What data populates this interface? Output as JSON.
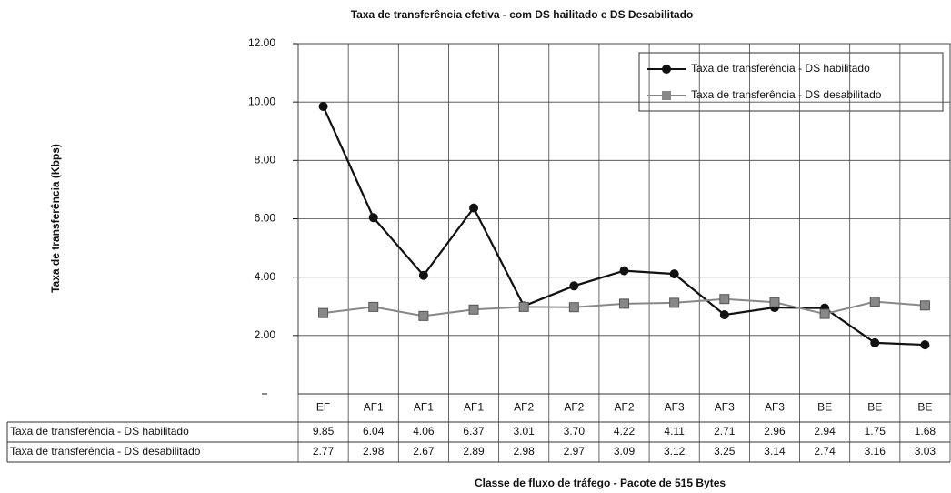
{
  "chart_data": {
    "type": "line",
    "title": "Taxa de transferência efetiva - com DS hailitado e DS Desabilitado",
    "x_label": "Classe de fluxo de tráfego - Pacote de 515 Bytes",
    "y_label": "Taxa de transferência (Kbps)",
    "categories": [
      "EF",
      "AF1",
      "AF1",
      "AF1",
      "AF2",
      "AF2",
      "AF2",
      "AF3",
      "AF3",
      "AF3",
      "BE",
      "BE",
      "BE"
    ],
    "series": [
      {
        "name": "Taxa de transferência - DS habilitado",
        "color": "#111111",
        "marker": "circle",
        "values": [
          9.85,
          6.04,
          4.06,
          6.37,
          3.01,
          3.7,
          4.22,
          4.11,
          2.71,
          2.96,
          2.94,
          1.75,
          1.68
        ],
        "value_labels": [
          "9.85",
          "6.04",
          "4.06",
          "6.37",
          "3.01",
          "3.70",
          "4.22",
          "4.11",
          "2.71",
          "2.96",
          "2.94",
          "1.75",
          "1.68"
        ]
      },
      {
        "name": "Taxa de transferência - DS desabilitado",
        "color": "#888888",
        "marker": "square",
        "values": [
          2.77,
          2.98,
          2.67,
          2.89,
          2.98,
          2.97,
          3.09,
          3.12,
          3.25,
          3.14,
          2.74,
          3.16,
          3.03
        ],
        "value_labels": [
          "2.77",
          "2.98",
          "2.67",
          "2.89",
          "2.98",
          "2.97",
          "3.09",
          "3.12",
          "3.25",
          "3.14",
          "2.74",
          "3.16",
          "3.03"
        ]
      }
    ],
    "ylim": [
      0,
      12
    ],
    "yticks": [
      {
        "value": 2,
        "label": "2.00"
      },
      {
        "value": 4,
        "label": "4.00"
      },
      {
        "value": 6,
        "label": "6.00"
      },
      {
        "value": 8,
        "label": "8.00"
      },
      {
        "value": 10,
        "label": "10.00"
      },
      {
        "value": 12,
        "label": "12.00"
      }
    ],
    "grid": true,
    "legend": "top-right"
  }
}
